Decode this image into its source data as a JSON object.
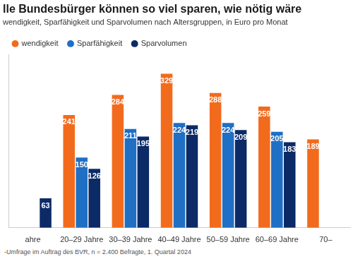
{
  "chart_data": {
    "type": "bar",
    "title": "lle Bundesbürger können so viel sparen, wie nötig wäre",
    "subtitle": "wendigkeit, Sparfähigkeit und Sparvolumen nach Altersgruppen, in Euro pro Monat",
    "source": "-Umfrage im Auftrag des BVR, n = 2.400 Befragte, 1. Quartal 2024",
    "categories": [
      "ahre",
      "20–29 Jahre",
      "30–39 Jahre",
      "40–49 Jahre",
      "50–59 Jahre",
      "60–69 Jahre",
      "70–"
    ],
    "series": [
      {
        "name": "wendigkeit",
        "color": "#f26b1d",
        "values": [
          null,
          241,
          284,
          329,
          288,
          259,
          189
        ]
      },
      {
        "name": "Sparfähigkeit",
        "color": "#1f6fc5",
        "values": [
          null,
          150,
          211,
          224,
          224,
          205,
          null
        ]
      },
      {
        "name": "Sparvolumen",
        "color": "#0b2a66",
        "values": [
          63,
          126,
          195,
          219,
          209,
          183,
          null
        ]
      }
    ],
    "ylim": [
      0,
      370
    ],
    "tick_labels": "x",
    "grid": false,
    "legend": "top-left",
    "data_labels": true
  }
}
